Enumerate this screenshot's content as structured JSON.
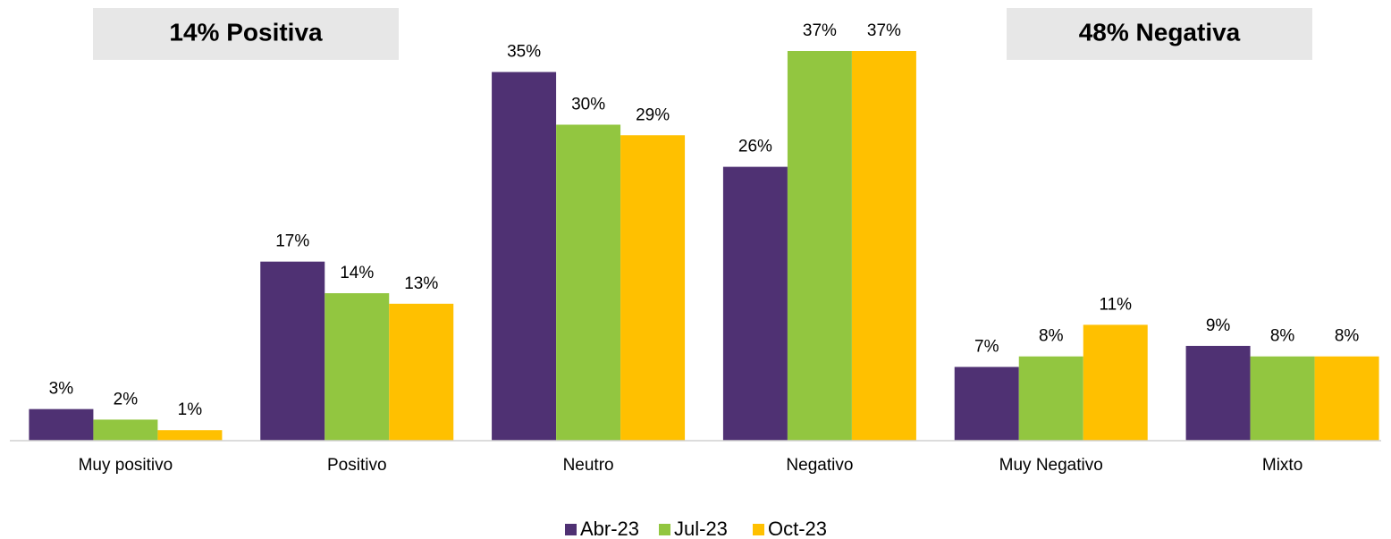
{
  "chart_data": {
    "type": "bar",
    "annotations": [
      {
        "text": "14% Positiva"
      },
      {
        "text": "48% Negativa"
      }
    ],
    "categories": [
      "Muy positivo",
      "Positivo",
      "Neutro",
      "Negativo",
      "Muy Negativo",
      "Mixto"
    ],
    "series": [
      {
        "name": "Abr-23",
        "color": "#4f3173",
        "values": [
          3,
          17,
          35,
          26,
          7,
          9
        ],
        "value_labels": [
          "3%",
          "17%",
          "35%",
          "26%",
          "7%",
          "9%"
        ]
      },
      {
        "name": "Jul-23",
        "color": "#92c640",
        "values": [
          2,
          14,
          30,
          37,
          8,
          8
        ],
        "value_labels": [
          "2%",
          "14%",
          "30%",
          "37%",
          "8%",
          "8%"
        ]
      },
      {
        "name": "Oct-23",
        "color": "#ffc000",
        "values": [
          1,
          13,
          29,
          37,
          11,
          8
        ],
        "value_labels": [
          "1%",
          "13%",
          "29%",
          "37%",
          "11%",
          "8%"
        ]
      }
    ],
    "legend": "bottom"
  }
}
